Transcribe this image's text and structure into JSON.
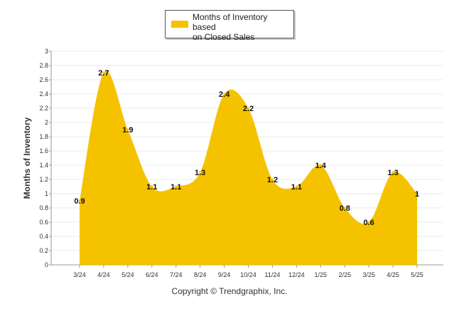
{
  "chart_data": {
    "type": "area",
    "categories": [
      "3/24",
      "4/24",
      "5/24",
      "6/24",
      "7/24",
      "8/24",
      "9/24",
      "10/24",
      "11/24",
      "12/24",
      "1/25",
      "2/25",
      "3/25",
      "4/25",
      "5/25"
    ],
    "series": [
      {
        "name": "Months of Inventory based on Closed Sales",
        "values": [
          0.9,
          2.7,
          1.9,
          1.1,
          1.1,
          1.3,
          2.4,
          2.2,
          1.2,
          1.1,
          1.4,
          0.8,
          0.6,
          1.3,
          1.0
        ],
        "data_labels": [
          "0.9",
          "2.7",
          "1.9",
          "1.1",
          "1.1",
          "1.3",
          "2.4",
          "2.2",
          "1.2",
          "1.1",
          "1.4",
          "0.8",
          "0.6",
          "1.3",
          "1"
        ]
      }
    ],
    "ylabel": "Months of Inventory",
    "xlabel": "",
    "ylim": [
      0,
      3
    ],
    "yticks": [
      "0",
      "0.2",
      "0.4",
      "0.6",
      "0.8",
      "1",
      "1.2",
      "1.4",
      "1.6",
      "1.8",
      "2",
      "2.2",
      "2.4",
      "2.6",
      "2.8",
      "3"
    ],
    "grid": true,
    "legend": "top-center",
    "color": "#f5c200"
  },
  "legend": {
    "label_line1": "Months of Inventory based",
    "label_line2": "on Closed Sales"
  },
  "footer": {
    "copyright": "Copyright © Trendgraphix, Inc."
  }
}
